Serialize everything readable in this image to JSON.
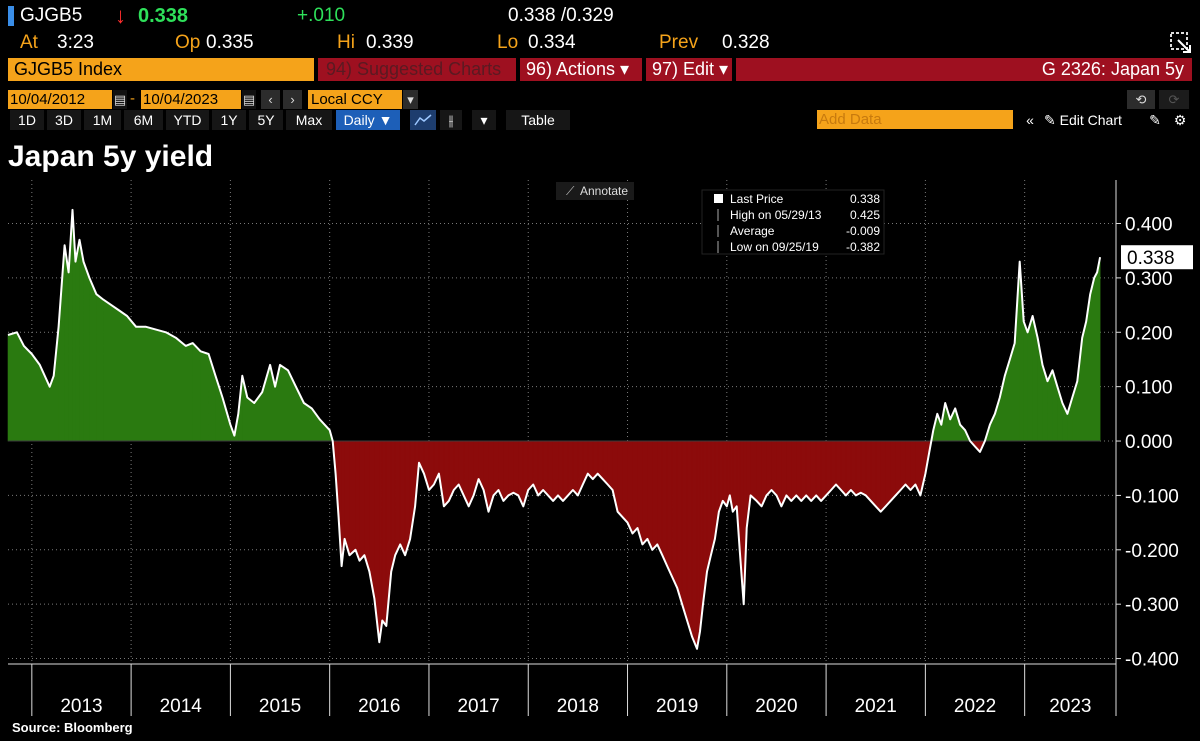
{
  "header": {
    "ticker": "GJGB5",
    "arrow": "↓",
    "last": "0.338",
    "change": "+.010",
    "bid_ask": "0.338 /0.329",
    "at_label": "At",
    "at_value": "3:23",
    "op_label": "Op",
    "op_value": "0.335",
    "hi_label": "Hi",
    "hi_value": "0.339",
    "lo_label": "Lo",
    "lo_value": "0.334",
    "prev_label": "Prev",
    "prev_value": "0.328"
  },
  "command_bar": {
    "security": "GJGB5 Index",
    "suggested": "94) Suggested Charts",
    "actions": "96) Actions ▾",
    "edit": "97) Edit ▾",
    "chart_id": "G 2326: Japan 5y"
  },
  "controls": {
    "start_date": "10/04/2012",
    "end_date": "10/04/2023",
    "dash": "-",
    "currency": "Local CCY",
    "periods": [
      "1D",
      "3D",
      "1M",
      "6M",
      "YTD",
      "1Y",
      "5Y",
      "Max"
    ],
    "frequency": "Daily ▼",
    "table_label": "Table",
    "add_data_placeholder": "Add Data",
    "edit_chart": "Edit Chart"
  },
  "chart_data": {
    "type": "area",
    "title": "Japan 5y yield",
    "annotate_label": "Annotate",
    "x_tick_labels": [
      "2013",
      "2014",
      "2015",
      "2016",
      "2017",
      "2018",
      "2019",
      "2020",
      "2021",
      "2022",
      "2023"
    ],
    "y_tick_labels": [
      "0.400",
      "0.300",
      "0.200",
      "0.100",
      "0.000",
      "-0.100",
      "-0.200",
      "-0.300",
      "-0.400"
    ],
    "ylim": [
      -0.41,
      0.48
    ],
    "xlim": [
      2012.76,
      2023.92
    ],
    "last_label": "0.338",
    "legend": [
      {
        "label": "Last Price",
        "value": "0.338"
      },
      {
        "label": "High on 05/29/13",
        "value": "0.425"
      },
      {
        "label": "Average",
        "value": "-0.009"
      },
      {
        "label": "Low on 09/25/19",
        "value": "-0.382"
      }
    ],
    "positive_color": "#2a7a10",
    "negative_color": "#8c0b0b",
    "line_color": "#ffffff",
    "series": [
      {
        "name": "Japan 5y yield",
        "points": [
          [
            2012.76,
            0.195
          ],
          [
            2012.85,
            0.2
          ],
          [
            2012.92,
            0.175
          ],
          [
            2013.0,
            0.16
          ],
          [
            2013.08,
            0.14
          ],
          [
            2013.18,
            0.1
          ],
          [
            2013.22,
            0.12
          ],
          [
            2013.27,
            0.21
          ],
          [
            2013.33,
            0.36
          ],
          [
            2013.37,
            0.31
          ],
          [
            2013.41,
            0.425
          ],
          [
            2013.44,
            0.33
          ],
          [
            2013.48,
            0.37
          ],
          [
            2013.52,
            0.33
          ],
          [
            2013.58,
            0.3
          ],
          [
            2013.65,
            0.27
          ],
          [
            2013.72,
            0.26
          ],
          [
            2013.8,
            0.25
          ],
          [
            2013.88,
            0.24
          ],
          [
            2013.96,
            0.23
          ],
          [
            2014.05,
            0.21
          ],
          [
            2014.15,
            0.21
          ],
          [
            2014.25,
            0.205
          ],
          [
            2014.35,
            0.2
          ],
          [
            2014.45,
            0.19
          ],
          [
            2014.55,
            0.175
          ],
          [
            2014.62,
            0.18
          ],
          [
            2014.7,
            0.165
          ],
          [
            2014.78,
            0.16
          ],
          [
            2014.85,
            0.12
          ],
          [
            2014.92,
            0.08
          ],
          [
            2015.0,
            0.03
          ],
          [
            2015.04,
            0.01
          ],
          [
            2015.08,
            0.05
          ],
          [
            2015.12,
            0.12
          ],
          [
            2015.17,
            0.08
          ],
          [
            2015.24,
            0.07
          ],
          [
            2015.32,
            0.09
          ],
          [
            2015.4,
            0.14
          ],
          [
            2015.45,
            0.1
          ],
          [
            2015.5,
            0.14
          ],
          [
            2015.58,
            0.13
          ],
          [
            2015.66,
            0.1
          ],
          [
            2015.74,
            0.07
          ],
          [
            2015.82,
            0.06
          ],
          [
            2015.9,
            0.04
          ],
          [
            2016.0,
            0.02
          ],
          [
            2016.03,
            0.0
          ],
          [
            2016.06,
            -0.06
          ],
          [
            2016.09,
            -0.14
          ],
          [
            2016.12,
            -0.23
          ],
          [
            2016.15,
            -0.18
          ],
          [
            2016.2,
            -0.21
          ],
          [
            2016.26,
            -0.2
          ],
          [
            2016.3,
            -0.22
          ],
          [
            2016.35,
            -0.21
          ],
          [
            2016.4,
            -0.24
          ],
          [
            2016.45,
            -0.29
          ],
          [
            2016.5,
            -0.37
          ],
          [
            2016.53,
            -0.33
          ],
          [
            2016.57,
            -0.34
          ],
          [
            2016.62,
            -0.24
          ],
          [
            2016.66,
            -0.21
          ],
          [
            2016.71,
            -0.19
          ],
          [
            2016.76,
            -0.21
          ],
          [
            2016.81,
            -0.18
          ],
          [
            2016.86,
            -0.12
          ],
          [
            2016.9,
            -0.04
          ],
          [
            2016.95,
            -0.06
          ],
          [
            2017.0,
            -0.09
          ],
          [
            2017.05,
            -0.08
          ],
          [
            2017.1,
            -0.06
          ],
          [
            2017.15,
            -0.12
          ],
          [
            2017.2,
            -0.11
          ],
          [
            2017.25,
            -0.09
          ],
          [
            2017.3,
            -0.08
          ],
          [
            2017.35,
            -0.1
          ],
          [
            2017.4,
            -0.12
          ],
          [
            2017.45,
            -0.1
          ],
          [
            2017.5,
            -0.07
          ],
          [
            2017.55,
            -0.09
          ],
          [
            2017.6,
            -0.13
          ],
          [
            2017.65,
            -0.1
          ],
          [
            2017.7,
            -0.09
          ],
          [
            2017.75,
            -0.11
          ],
          [
            2017.8,
            -0.1
          ],
          [
            2017.85,
            -0.095
          ],
          [
            2017.9,
            -0.1
          ],
          [
            2017.95,
            -0.12
          ],
          [
            2018.0,
            -0.09
          ],
          [
            2018.05,
            -0.08
          ],
          [
            2018.1,
            -0.1
          ],
          [
            2018.15,
            -0.09
          ],
          [
            2018.2,
            -0.1
          ],
          [
            2018.25,
            -0.11
          ],
          [
            2018.3,
            -0.1
          ],
          [
            2018.35,
            -0.11
          ],
          [
            2018.4,
            -0.1
          ],
          [
            2018.45,
            -0.09
          ],
          [
            2018.5,
            -0.1
          ],
          [
            2018.55,
            -0.08
          ],
          [
            2018.6,
            -0.06
          ],
          [
            2018.65,
            -0.07
          ],
          [
            2018.7,
            -0.06
          ],
          [
            2018.75,
            -0.07
          ],
          [
            2018.8,
            -0.08
          ],
          [
            2018.85,
            -0.09
          ],
          [
            2018.9,
            -0.13
          ],
          [
            2018.95,
            -0.14
          ],
          [
            2019.0,
            -0.15
          ],
          [
            2019.05,
            -0.17
          ],
          [
            2019.1,
            -0.16
          ],
          [
            2019.15,
            -0.19
          ],
          [
            2019.2,
            -0.18
          ],
          [
            2019.25,
            -0.2
          ],
          [
            2019.3,
            -0.19
          ],
          [
            2019.35,
            -0.21
          ],
          [
            2019.4,
            -0.23
          ],
          [
            2019.45,
            -0.25
          ],
          [
            2019.5,
            -0.27
          ],
          [
            2019.55,
            -0.3
          ],
          [
            2019.6,
            -0.33
          ],
          [
            2019.65,
            -0.36
          ],
          [
            2019.7,
            -0.382
          ],
          [
            2019.73,
            -0.35
          ],
          [
            2019.76,
            -0.3
          ],
          [
            2019.8,
            -0.24
          ],
          [
            2019.84,
            -0.21
          ],
          [
            2019.88,
            -0.18
          ],
          [
            2019.92,
            -0.13
          ],
          [
            2019.96,
            -0.11
          ],
          [
            2020.0,
            -0.12
          ],
          [
            2020.03,
            -0.1
          ],
          [
            2020.06,
            -0.13
          ],
          [
            2020.1,
            -0.12
          ],
          [
            2020.13,
            -0.2
          ],
          [
            2020.17,
            -0.3
          ],
          [
            2020.2,
            -0.16
          ],
          [
            2020.24,
            -0.1
          ],
          [
            2020.3,
            -0.11
          ],
          [
            2020.35,
            -0.12
          ],
          [
            2020.4,
            -0.1
          ],
          [
            2020.45,
            -0.09
          ],
          [
            2020.5,
            -0.1
          ],
          [
            2020.55,
            -0.12
          ],
          [
            2020.6,
            -0.1
          ],
          [
            2020.65,
            -0.11
          ],
          [
            2020.7,
            -0.1
          ],
          [
            2020.75,
            -0.11
          ],
          [
            2020.8,
            -0.1
          ],
          [
            2020.85,
            -0.11
          ],
          [
            2020.9,
            -0.1
          ],
          [
            2020.95,
            -0.11
          ],
          [
            2021.0,
            -0.1
          ],
          [
            2021.05,
            -0.09
          ],
          [
            2021.1,
            -0.08
          ],
          [
            2021.15,
            -0.09
          ],
          [
            2021.2,
            -0.1
          ],
          [
            2021.25,
            -0.09
          ],
          [
            2021.3,
            -0.1
          ],
          [
            2021.35,
            -0.095
          ],
          [
            2021.4,
            -0.1
          ],
          [
            2021.45,
            -0.11
          ],
          [
            2021.5,
            -0.12
          ],
          [
            2021.55,
            -0.13
          ],
          [
            2021.6,
            -0.12
          ],
          [
            2021.65,
            -0.11
          ],
          [
            2021.7,
            -0.1
          ],
          [
            2021.75,
            -0.09
          ],
          [
            2021.8,
            -0.08
          ],
          [
            2021.85,
            -0.09
          ],
          [
            2021.9,
            -0.08
          ],
          [
            2021.95,
            -0.1
          ],
          [
            2022.0,
            -0.06
          ],
          [
            2022.04,
            -0.02
          ],
          [
            2022.08,
            0.02
          ],
          [
            2022.12,
            0.05
          ],
          [
            2022.16,
            0.03
          ],
          [
            2022.2,
            0.07
          ],
          [
            2022.25,
            0.04
          ],
          [
            2022.3,
            0.06
          ],
          [
            2022.35,
            0.03
          ],
          [
            2022.4,
            0.02
          ],
          [
            2022.45,
            0.0
          ],
          [
            2022.5,
            -0.01
          ],
          [
            2022.55,
            -0.02
          ],
          [
            2022.6,
            0.0
          ],
          [
            2022.65,
            0.03
          ],
          [
            2022.7,
            0.05
          ],
          [
            2022.75,
            0.08
          ],
          [
            2022.8,
            0.12
          ],
          [
            2022.85,
            0.15
          ],
          [
            2022.9,
            0.18
          ],
          [
            2022.95,
            0.33
          ],
          [
            2022.99,
            0.22
          ],
          [
            2023.03,
            0.2
          ],
          [
            2023.08,
            0.23
          ],
          [
            2023.13,
            0.19
          ],
          [
            2023.18,
            0.14
          ],
          [
            2023.23,
            0.11
          ],
          [
            2023.28,
            0.13
          ],
          [
            2023.33,
            0.1
          ],
          [
            2023.38,
            0.07
          ],
          [
            2023.43,
            0.05
          ],
          [
            2023.48,
            0.08
          ],
          [
            2023.53,
            0.11
          ],
          [
            2023.58,
            0.19
          ],
          [
            2023.62,
            0.22
          ],
          [
            2023.66,
            0.27
          ],
          [
            2023.7,
            0.3
          ],
          [
            2023.73,
            0.31
          ],
          [
            2023.76,
            0.338
          ]
        ]
      }
    ]
  },
  "footer": {
    "source": "Source: Bloomberg"
  }
}
